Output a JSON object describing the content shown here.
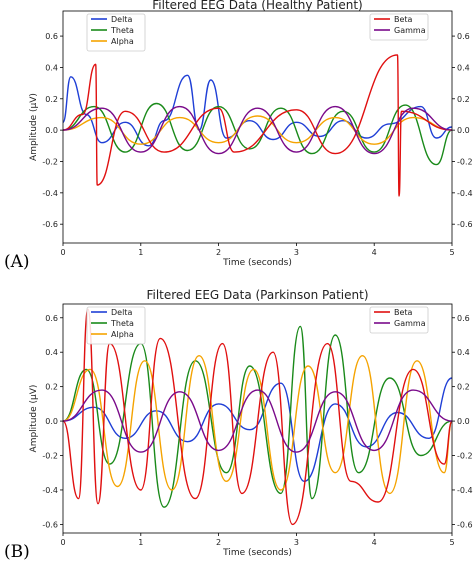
{
  "panel_tags": [
    "(A)",
    "(B)"
  ],
  "colors": {
    "Delta": "#1f3fd6",
    "Theta": "#1a8a1a",
    "Alpha": "#f5a300",
    "Beta": "#e01010",
    "Gamma": "#7a0a8a"
  },
  "chart_data": [
    {
      "type": "line",
      "title": "Filtered EEG Data (Healthy Patient)",
      "xlabel": "Time (seconds)",
      "ylabel": "Amplitude (µV)",
      "xlim": [
        0,
        5
      ],
      "ylim": [
        -0.72,
        0.76
      ],
      "xticks": [
        0,
        1,
        2,
        3,
        4,
        5
      ],
      "yticks": [
        -0.6,
        -0.4,
        -0.2,
        0.0,
        0.2,
        0.4,
        0.6
      ],
      "ytick_labels": [
        "-0.6",
        "-0.4",
        "-0.2",
        "0.0",
        "0.2",
        "0.4",
        "0.6"
      ],
      "right_axis_ticks": [
        "-0.6",
        "-0.4",
        "-0.2",
        "0.0",
        "0.2",
        "0.4",
        "0.6"
      ],
      "legend_left": [
        "Delta",
        "Theta",
        "Alpha"
      ],
      "legend_right": [
        "Beta",
        "Gamma"
      ],
      "series": [
        {
          "name": "Delta",
          "x": [
            0,
            0.1,
            0.3,
            0.5,
            0.8,
            1.1,
            1.3,
            1.6,
            1.75,
            1.9,
            2.1,
            2.4,
            2.7,
            3.0,
            3.3,
            3.6,
            3.9,
            4.2,
            4.6,
            4.8,
            5.0
          ],
          "y": [
            0.05,
            0.34,
            0.1,
            -0.08,
            0.05,
            -0.1,
            0.06,
            0.35,
            0.0,
            0.32,
            -0.05,
            0.06,
            -0.06,
            0.05,
            -0.04,
            0.06,
            -0.05,
            0.04,
            0.15,
            -0.05,
            0.02
          ]
        },
        {
          "name": "Theta",
          "x": [
            0,
            0.4,
            0.8,
            1.2,
            1.6,
            2.0,
            2.4,
            2.8,
            3.2,
            3.6,
            4.0,
            4.4,
            4.8,
            5.0
          ],
          "y": [
            0,
            0.15,
            -0.14,
            0.17,
            -0.13,
            0.15,
            -0.12,
            0.14,
            -0.15,
            0.12,
            -0.14,
            0.16,
            -0.22,
            0
          ]
        },
        {
          "name": "Alpha",
          "x": [
            0,
            0.5,
            1.0,
            1.5,
            2.0,
            2.5,
            3.0,
            3.5,
            4.0,
            4.5,
            5.0
          ],
          "y": [
            0,
            0.08,
            -0.09,
            0.08,
            -0.08,
            0.09,
            -0.08,
            0.08,
            -0.09,
            0.08,
            0
          ]
        },
        {
          "name": "Beta",
          "x": [
            0,
            0.25,
            0.42,
            0.44,
            0.8,
            1.3,
            2.0,
            2.2,
            3.0,
            3.5,
            4.3,
            4.32,
            4.35,
            5.0
          ],
          "y": [
            0,
            0.1,
            0.42,
            -0.35,
            0.12,
            -0.14,
            0.14,
            -0.14,
            0.13,
            -0.15,
            0.48,
            -0.42,
            0.12,
            0
          ]
        },
        {
          "name": "Gamma",
          "x": [
            0,
            0.5,
            1.0,
            1.5,
            2.0,
            2.5,
            3.0,
            3.5,
            4.0,
            4.5,
            5.0
          ],
          "y": [
            0,
            0.14,
            -0.14,
            0.15,
            -0.15,
            0.14,
            -0.14,
            0.15,
            -0.15,
            0.14,
            0
          ]
        }
      ]
    },
    {
      "type": "line",
      "title": "Filtered EEG Data (Parkinson Patient)",
      "xlabel": "Time (seconds)",
      "ylabel": "Amplitude (µV)",
      "xlim": [
        0,
        5
      ],
      "ylim": [
        -0.65,
        0.68
      ],
      "xticks": [
        0,
        1,
        2,
        3,
        4,
        5
      ],
      "yticks": [
        -0.6,
        -0.4,
        -0.2,
        0.0,
        0.2,
        0.4,
        0.6
      ],
      "ytick_labels": [
        "-0.6",
        "-0.4",
        "-0.2",
        "0.0",
        "0.2",
        "0.4",
        "0.6"
      ],
      "right_axis_ticks": [
        "-0.6",
        "-0.4",
        "-0.2",
        "0.0",
        "0.2",
        "0.4",
        "0.6"
      ],
      "legend_left": [
        "Delta",
        "Theta",
        "Alpha"
      ],
      "legend_right": [
        "Beta",
        "Gamma"
      ],
      "series": [
        {
          "name": "Delta",
          "x": [
            0,
            0.4,
            0.8,
            1.2,
            1.6,
            2.0,
            2.4,
            2.8,
            3.1,
            3.5,
            3.9,
            4.3,
            4.7,
            5.0
          ],
          "y": [
            0,
            0.08,
            -0.1,
            0.06,
            -0.12,
            0.1,
            -0.05,
            0.22,
            -0.35,
            0.1,
            -0.15,
            0.05,
            -0.1,
            0.25
          ]
        },
        {
          "name": "Theta",
          "x": [
            0,
            0.3,
            0.6,
            1.0,
            1.3,
            1.7,
            2.1,
            2.4,
            2.8,
            3.05,
            3.2,
            3.5,
            3.8,
            4.2,
            4.6,
            5.0
          ],
          "y": [
            0,
            0.3,
            -0.25,
            0.45,
            -0.5,
            0.35,
            -0.3,
            0.32,
            -0.42,
            0.55,
            -0.45,
            0.5,
            -0.3,
            0.25,
            -0.2,
            0
          ]
        },
        {
          "name": "Alpha",
          "x": [
            0,
            0.35,
            0.7,
            1.05,
            1.4,
            1.75,
            2.1,
            2.45,
            2.8,
            3.15,
            3.5,
            3.85,
            4.2,
            4.55,
            4.9,
            5.0
          ],
          "y": [
            0,
            0.3,
            -0.38,
            0.35,
            -0.4,
            0.38,
            -0.35,
            0.3,
            -0.4,
            0.32,
            -0.3,
            0.38,
            -0.42,
            0.35,
            -0.3,
            0
          ]
        },
        {
          "name": "Beta",
          "x": [
            0,
            0.2,
            0.32,
            0.45,
            0.6,
            1.0,
            1.25,
            1.7,
            2.05,
            2.3,
            2.7,
            2.95,
            3.4,
            3.7,
            4.05,
            4.5,
            4.9,
            5.0
          ],
          "y": [
            0,
            -0.45,
            0.65,
            -0.48,
            0.45,
            -0.4,
            0.48,
            -0.45,
            0.45,
            -0.42,
            0.4,
            -0.6,
            0.45,
            -0.35,
            -0.47,
            0.3,
            -0.25,
            0
          ]
        },
        {
          "name": "Gamma",
          "x": [
            0,
            0.5,
            1.0,
            1.5,
            2.0,
            2.5,
            3.0,
            3.5,
            4.0,
            4.5,
            5.0
          ],
          "y": [
            0,
            0.18,
            -0.18,
            0.17,
            -0.17,
            0.18,
            -0.18,
            0.17,
            -0.17,
            0.18,
            0
          ]
        }
      ]
    }
  ]
}
